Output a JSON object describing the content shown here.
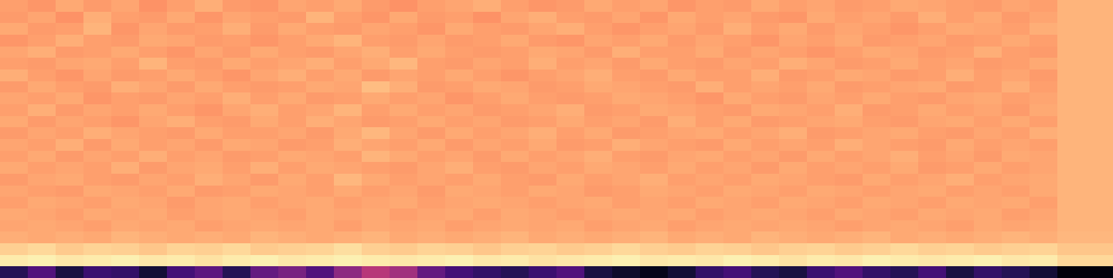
{
  "chart_data": {
    "type": "heatmap",
    "tick_labels": false,
    "zlim": [
      0,
      1
    ],
    "cells": [
      [
        0.8,
        0.78,
        0.82,
        0.79,
        0.81,
        0.77,
        0.8,
        0.83,
        0.79,
        0.78,
        0.81,
        0.8,
        0.82,
        0.79,
        0.77,
        0.8,
        0.81,
        0.83,
        0.8,
        0.78,
        0.79,
        0.82,
        0.8,
        0.81,
        0.78,
        0.8,
        0.79,
        0.82,
        0.8,
        0.81,
        0.79,
        0.8,
        0.82,
        0.81,
        0.8,
        0.79,
        0.81,
        0.8,
        0.84,
        0.84
      ],
      [
        0.79,
        0.81,
        0.77,
        0.83,
        0.8,
        0.79,
        0.82,
        0.78,
        0.81,
        0.8,
        0.79,
        0.84,
        0.8,
        0.78,
        0.82,
        0.79,
        0.8,
        0.77,
        0.81,
        0.83,
        0.8,
        0.79,
        0.81,
        0.78,
        0.82,
        0.8,
        0.81,
        0.79,
        0.78,
        0.82,
        0.8,
        0.81,
        0.79,
        0.83,
        0.8,
        0.82,
        0.79,
        0.81,
        0.84,
        0.84
      ],
      [
        0.82,
        0.79,
        0.8,
        0.84,
        0.78,
        0.81,
        0.79,
        0.8,
        0.83,
        0.79,
        0.82,
        0.8,
        0.79,
        0.81,
        0.8,
        0.78,
        0.82,
        0.8,
        0.79,
        0.81,
        0.83,
        0.8,
        0.78,
        0.8,
        0.81,
        0.79,
        0.83,
        0.8,
        0.82,
        0.79,
        0.81,
        0.8,
        0.78,
        0.8,
        0.82,
        0.81,
        0.8,
        0.83,
        0.84,
        0.84
      ],
      [
        0.78,
        0.8,
        0.83,
        0.8,
        0.79,
        0.82,
        0.81,
        0.79,
        0.8,
        0.78,
        0.8,
        0.82,
        0.84,
        0.8,
        0.79,
        0.81,
        0.79,
        0.8,
        0.82,
        0.79,
        0.78,
        0.81,
        0.8,
        0.82,
        0.79,
        0.81,
        0.8,
        0.78,
        0.81,
        0.8,
        0.82,
        0.79,
        0.8,
        0.81,
        0.79,
        0.8,
        0.82,
        0.8,
        0.84,
        0.84
      ],
      [
        0.81,
        0.83,
        0.79,
        0.8,
        0.82,
        0.8,
        0.78,
        0.81,
        0.79,
        0.82,
        0.8,
        0.79,
        0.81,
        0.83,
        0.8,
        0.82,
        0.8,
        0.79,
        0.8,
        0.82,
        0.81,
        0.79,
        0.83,
        0.8,
        0.8,
        0.82,
        0.79,
        0.81,
        0.8,
        0.78,
        0.8,
        0.82,
        0.81,
        0.79,
        0.8,
        0.83,
        0.8,
        0.79,
        0.84,
        0.84
      ],
      [
        0.8,
        0.79,
        0.81,
        0.82,
        0.8,
        0.84,
        0.8,
        0.79,
        0.82,
        0.8,
        0.81,
        0.83,
        0.8,
        0.82,
        0.85,
        0.8,
        0.79,
        0.81,
        0.8,
        0.83,
        0.8,
        0.81,
        0.79,
        0.82,
        0.8,
        0.79,
        0.81,
        0.8,
        0.83,
        0.81,
        0.79,
        0.8,
        0.82,
        0.8,
        0.81,
        0.79,
        0.8,
        0.82,
        0.84,
        0.84
      ],
      [
        0.83,
        0.8,
        0.78,
        0.81,
        0.79,
        0.8,
        0.82,
        0.8,
        0.78,
        0.81,
        0.83,
        0.8,
        0.82,
        0.79,
        0.81,
        0.8,
        0.82,
        0.8,
        0.78,
        0.8,
        0.81,
        0.83,
        0.8,
        0.79,
        0.82,
        0.8,
        0.8,
        0.83,
        0.79,
        0.8,
        0.82,
        0.81,
        0.79,
        0.8,
        0.83,
        0.8,
        0.81,
        0.79,
        0.84,
        0.84
      ],
      [
        0.79,
        0.82,
        0.8,
        0.79,
        0.83,
        0.81,
        0.79,
        0.82,
        0.8,
        0.79,
        0.8,
        0.82,
        0.81,
        0.86,
        0.83,
        0.79,
        0.8,
        0.82,
        0.81,
        0.79,
        0.8,
        0.82,
        0.81,
        0.8,
        0.79,
        0.83,
        0.8,
        0.81,
        0.8,
        0.82,
        0.79,
        0.8,
        0.81,
        0.82,
        0.79,
        0.8,
        0.83,
        0.8,
        0.84,
        0.84
      ],
      [
        0.81,
        0.8,
        0.82,
        0.78,
        0.8,
        0.79,
        0.81,
        0.8,
        0.83,
        0.8,
        0.82,
        0.79,
        0.8,
        0.82,
        0.8,
        0.81,
        0.78,
        0.8,
        0.82,
        0.8,
        0.79,
        0.8,
        0.82,
        0.81,
        0.8,
        0.78,
        0.82,
        0.8,
        0.79,
        0.81,
        0.8,
        0.82,
        0.8,
        0.79,
        0.81,
        0.82,
        0.8,
        0.81,
        0.84,
        0.84
      ],
      [
        0.8,
        0.83,
        0.79,
        0.81,
        0.8,
        0.82,
        0.8,
        0.78,
        0.81,
        0.83,
        0.8,
        0.81,
        0.84,
        0.8,
        0.82,
        0.8,
        0.81,
        0.79,
        0.8,
        0.81,
        0.83,
        0.79,
        0.8,
        0.82,
        0.81,
        0.8,
        0.79,
        0.82,
        0.81,
        0.8,
        0.83,
        0.79,
        0.8,
        0.82,
        0.8,
        0.81,
        0.79,
        0.82,
        0.84,
        0.84
      ],
      [
        0.82,
        0.79,
        0.81,
        0.8,
        0.78,
        0.81,
        0.83,
        0.8,
        0.79,
        0.82,
        0.8,
        0.83,
        0.81,
        0.79,
        0.8,
        0.82,
        0.8,
        0.81,
        0.79,
        0.8,
        0.82,
        0.8,
        0.81,
        0.79,
        0.83,
        0.8,
        0.82,
        0.79,
        0.8,
        0.81,
        0.82,
        0.8,
        0.79,
        0.81,
        0.82,
        0.8,
        0.82,
        0.8,
        0.84,
        0.84
      ],
      [
        0.79,
        0.81,
        0.8,
        0.83,
        0.81,
        0.8,
        0.79,
        0.82,
        0.8,
        0.8,
        0.81,
        0.79,
        0.82,
        0.85,
        0.81,
        0.79,
        0.82,
        0.8,
        0.81,
        0.83,
        0.8,
        0.82,
        0.79,
        0.8,
        0.81,
        0.82,
        0.8,
        0.81,
        0.83,
        0.79,
        0.8,
        0.81,
        0.82,
        0.8,
        0.79,
        0.81,
        0.8,
        0.83,
        0.84,
        0.84
      ],
      [
        0.81,
        0.8,
        0.83,
        0.79,
        0.82,
        0.8,
        0.81,
        0.79,
        0.82,
        0.81,
        0.79,
        0.8,
        0.83,
        0.81,
        0.8,
        0.82,
        0.79,
        0.81,
        0.8,
        0.82,
        0.79,
        0.8,
        0.83,
        0.81,
        0.8,
        0.79,
        0.82,
        0.8,
        0.81,
        0.8,
        0.83,
        0.81,
        0.8,
        0.79,
        0.82,
        0.8,
        0.81,
        0.8,
        0.84,
        0.84
      ],
      [
        0.8,
        0.82,
        0.79,
        0.81,
        0.8,
        0.83,
        0.8,
        0.81,
        0.79,
        0.8,
        0.82,
        0.81,
        0.8,
        0.84,
        0.82,
        0.8,
        0.81,
        0.79,
        0.82,
        0.8,
        0.81,
        0.83,
        0.8,
        0.79,
        0.81,
        0.82,
        0.8,
        0.81,
        0.79,
        0.82,
        0.8,
        0.81,
        0.83,
        0.8,
        0.81,
        0.79,
        0.82,
        0.81,
        0.84,
        0.84
      ],
      [
        0.82,
        0.8,
        0.81,
        0.8,
        0.83,
        0.79,
        0.81,
        0.82,
        0.8,
        0.83,
        0.8,
        0.82,
        0.81,
        0.8,
        0.79,
        0.81,
        0.83,
        0.8,
        0.79,
        0.81,
        0.8,
        0.82,
        0.81,
        0.8,
        0.82,
        0.8,
        0.81,
        0.79,
        0.82,
        0.8,
        0.81,
        0.8,
        0.82,
        0.79,
        0.8,
        0.82,
        0.8,
        0.81,
        0.84,
        0.84
      ],
      [
        0.79,
        0.81,
        0.82,
        0.8,
        0.79,
        0.81,
        0.8,
        0.83,
        0.81,
        0.79,
        0.82,
        0.8,
        0.85,
        0.82,
        0.8,
        0.81,
        0.8,
        0.82,
        0.8,
        0.79,
        0.82,
        0.8,
        0.81,
        0.83,
        0.8,
        0.81,
        0.8,
        0.82,
        0.81,
        0.8,
        0.79,
        0.82,
        0.8,
        0.81,
        0.83,
        0.8,
        0.81,
        0.82,
        0.84,
        0.84
      ],
      [
        0.81,
        0.8,
        0.79,
        0.82,
        0.81,
        0.8,
        0.82,
        0.79,
        0.8,
        0.82,
        0.81,
        0.8,
        0.82,
        0.8,
        0.81,
        0.79,
        0.82,
        0.81,
        0.8,
        0.82,
        0.81,
        0.79,
        0.8,
        0.82,
        0.81,
        0.8,
        0.82,
        0.81,
        0.8,
        0.82,
        0.81,
        0.8,
        0.81,
        0.82,
        0.8,
        0.81,
        0.8,
        0.82,
        0.84,
        0.84
      ],
      [
        0.8,
        0.82,
        0.81,
        0.8,
        0.82,
        0.81,
        0.79,
        0.81,
        0.82,
        0.8,
        0.81,
        0.82,
        0.8,
        0.81,
        0.82,
        0.8,
        0.81,
        0.82,
        0.81,
        0.8,
        0.81,
        0.82,
        0.8,
        0.81,
        0.8,
        0.82,
        0.81,
        0.8,
        0.82,
        0.81,
        0.8,
        0.82,
        0.81,
        0.8,
        0.82,
        0.81,
        0.82,
        0.8,
        0.84,
        0.84
      ],
      [
        0.82,
        0.81,
        0.8,
        0.82,
        0.81,
        0.82,
        0.8,
        0.81,
        0.82,
        0.81,
        0.8,
        0.82,
        0.81,
        0.82,
        0.8,
        0.81,
        0.82,
        0.8,
        0.82,
        0.81,
        0.8,
        0.81,
        0.82,
        0.81,
        0.82,
        0.8,
        0.81,
        0.82,
        0.81,
        0.8,
        0.82,
        0.81,
        0.8,
        0.82,
        0.81,
        0.82,
        0.8,
        0.81,
        0.84,
        0.84
      ],
      [
        0.81,
        0.82,
        0.81,
        0.8,
        0.82,
        0.81,
        0.82,
        0.8,
        0.81,
        0.82,
        0.81,
        0.82,
        0.8,
        0.82,
        0.81,
        0.82,
        0.8,
        0.81,
        0.82,
        0.81,
        0.82,
        0.8,
        0.81,
        0.82,
        0.8,
        0.81,
        0.82,
        0.81,
        0.82,
        0.81,
        0.8,
        0.81,
        0.82,
        0.81,
        0.8,
        0.82,
        0.81,
        0.82,
        0.84,
        0.84
      ],
      [
        0.83,
        0.82,
        0.83,
        0.82,
        0.84,
        0.83,
        0.82,
        0.83,
        0.82,
        0.84,
        0.83,
        0.82,
        0.83,
        0.84,
        0.82,
        0.83,
        0.82,
        0.83,
        0.84,
        0.82,
        0.83,
        0.82,
        0.83,
        0.84,
        0.82,
        0.83,
        0.82,
        0.84,
        0.83,
        0.82,
        0.83,
        0.84,
        0.82,
        0.83,
        0.82,
        0.83,
        0.84,
        0.83,
        0.85,
        0.85
      ],
      [
        0.9,
        0.92,
        0.89,
        0.91,
        0.9,
        0.88,
        0.91,
        0.9,
        0.92,
        0.89,
        0.9,
        0.91,
        0.93,
        0.9,
        0.89,
        0.91,
        0.9,
        0.88,
        0.9,
        0.91,
        0.89,
        0.9,
        0.92,
        0.9,
        0.89,
        0.91,
        0.9,
        0.88,
        0.9,
        0.91,
        0.89,
        0.9,
        0.92,
        0.9,
        0.91,
        0.89,
        0.9,
        0.91,
        0.88,
        0.88
      ],
      [
        0.96,
        0.97,
        0.95,
        0.96,
        0.97,
        0.95,
        0.96,
        0.94,
        0.96,
        0.97,
        0.95,
        0.96,
        0.97,
        0.96,
        0.95,
        0.96,
        0.97,
        0.95,
        0.96,
        0.94,
        0.95,
        0.96,
        0.97,
        0.95,
        0.96,
        0.95,
        0.97,
        0.96,
        0.94,
        0.96,
        0.95,
        0.97,
        0.96,
        0.95,
        0.96,
        0.97,
        0.95,
        0.96,
        0.92,
        0.92
      ],
      [
        0.15,
        0.25,
        0.12,
        0.2,
        0.18,
        0.1,
        0.22,
        0.28,
        0.15,
        0.3,
        0.35,
        0.25,
        0.4,
        0.5,
        0.45,
        0.3,
        0.22,
        0.18,
        0.15,
        0.2,
        0.25,
        0.12,
        0.08,
        0.05,
        0.1,
        0.18,
        0.22,
        0.15,
        0.12,
        0.2,
        0.25,
        0.18,
        0.15,
        0.22,
        0.12,
        0.18,
        0.15,
        0.1,
        0.02,
        0.02
      ]
    ]
  }
}
